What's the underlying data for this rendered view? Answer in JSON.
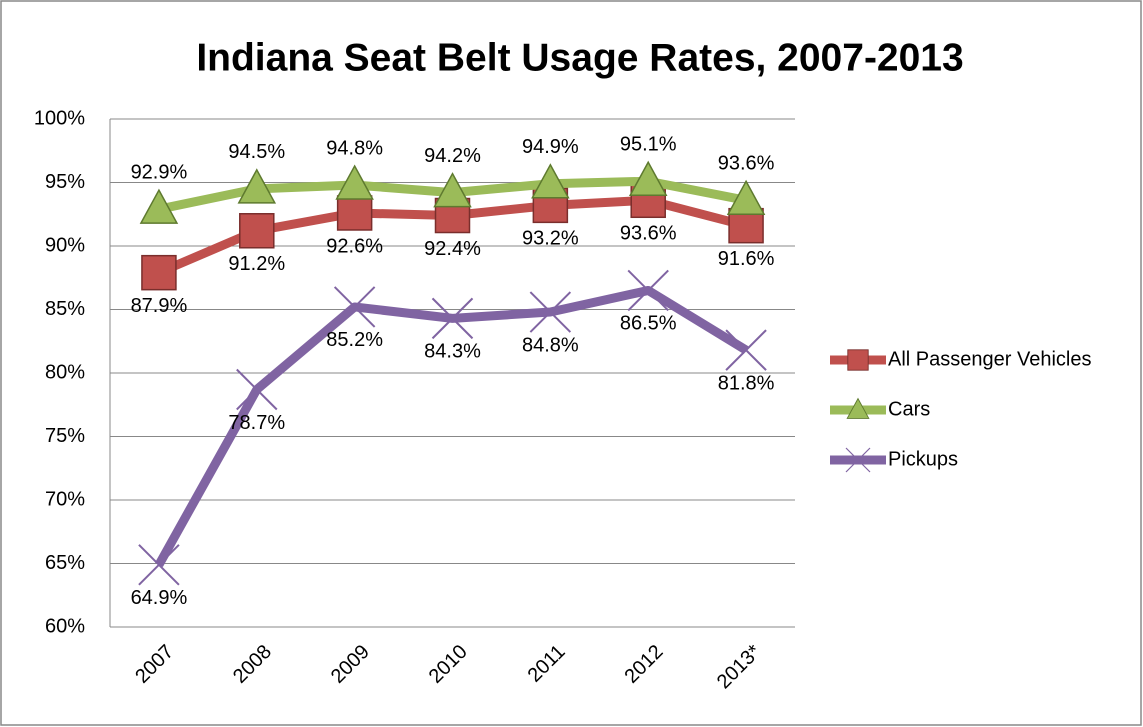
{
  "chart_data": {
    "type": "line",
    "title": "Indiana Seat Belt Usage Rates, 2007-2013",
    "categories": [
      "2007",
      "2008",
      "2009",
      "2010",
      "2011",
      "2012",
      "2013*"
    ],
    "series": [
      {
        "name": "All Passenger Vehicles",
        "color": "#c0504d",
        "marker": "square",
        "values": [
          87.9,
          91.2,
          92.6,
          92.4,
          93.2,
          93.6,
          91.6
        ],
        "value_labels": [
          "87.9%",
          "91.2%",
          "92.6%",
          "92.4%",
          "93.2%",
          "93.6%",
          "91.6%"
        ]
      },
      {
        "name": "Cars",
        "color": "#9bbb59",
        "marker": "triangle",
        "values": [
          92.9,
          94.5,
          94.8,
          94.2,
          94.9,
          95.1,
          93.6
        ],
        "value_labels": [
          "92.9%",
          "94.5%",
          "94.8%",
          "94.2%",
          "94.9%",
          "95.1%",
          "93.6%"
        ]
      },
      {
        "name": "Pickups",
        "color": "#8064a2",
        "marker": "x",
        "values": [
          64.9,
          78.7,
          85.2,
          84.3,
          84.8,
          86.5,
          81.8
        ],
        "value_labels": [
          "64.9%",
          "78.7%",
          "85.2%",
          "84.3%",
          "84.8%",
          "86.5%",
          "81.8%"
        ]
      }
    ],
    "ylim": [
      60,
      100
    ],
    "yticks": [
      {
        "value": 60,
        "label": "60%"
      },
      {
        "value": 65,
        "label": "65%"
      },
      {
        "value": 70,
        "label": "70%"
      },
      {
        "value": 75,
        "label": "75%"
      },
      {
        "value": 80,
        "label": "80%"
      },
      {
        "value": 85,
        "label": "85%"
      },
      {
        "value": 90,
        "label": "90%"
      },
      {
        "value": 95,
        "label": "95%"
      },
      {
        "value": 100,
        "label": "100%"
      }
    ],
    "grid": true,
    "legend": "right"
  }
}
